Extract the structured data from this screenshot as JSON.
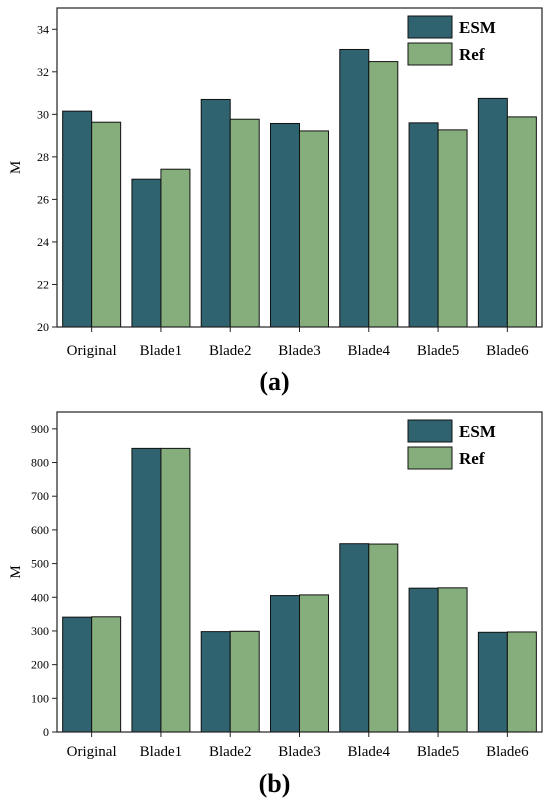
{
  "colors": {
    "esm": "#2f6370",
    "ref": "#86ae7c",
    "frame": "#222222"
  },
  "chart_data": [
    {
      "type": "bar",
      "panel_label": "(a)",
      "ylabel": "M",
      "xlabel": "",
      "ylim": [
        20,
        35
      ],
      "yticks": [
        20,
        22,
        24,
        26,
        28,
        30,
        32,
        34
      ],
      "categories": [
        "Original",
        "Blade1",
        "Blade2",
        "Blade3",
        "Blade4",
        "Blade5",
        "Blade6"
      ],
      "legend_position": "top-right",
      "grid": false,
      "series": [
        {
          "name": "ESM",
          "values": [
            30.15,
            26.95,
            30.7,
            29.57,
            33.05,
            29.6,
            30.75
          ]
        },
        {
          "name": "Ref",
          "values": [
            29.63,
            27.42,
            29.77,
            29.22,
            32.48,
            29.27,
            29.88
          ]
        }
      ]
    },
    {
      "type": "bar",
      "panel_label": "(b)",
      "ylabel": "M",
      "xlabel": "",
      "ylim": [
        0,
        950
      ],
      "yticks": [
        0,
        100,
        200,
        300,
        400,
        500,
        600,
        700,
        800,
        900
      ],
      "categories": [
        "Original",
        "Blade1",
        "Blade2",
        "Blade3",
        "Blade4",
        "Blade5",
        "Blade6"
      ],
      "legend_position": "top-right",
      "grid": false,
      "series": [
        {
          "name": "ESM",
          "values": [
            341,
            842,
            298,
            405,
            559,
            427,
            296
          ]
        },
        {
          "name": "Ref",
          "values": [
            342,
            842,
            299,
            407,
            558,
            428,
            297
          ]
        }
      ]
    }
  ]
}
